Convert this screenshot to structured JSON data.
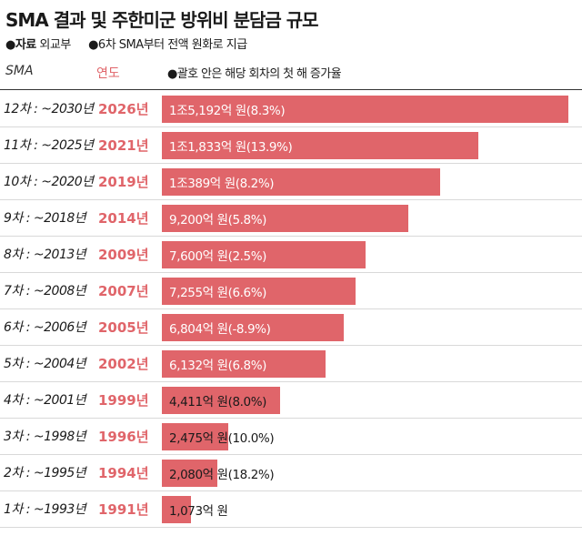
{
  "title": "SMA 결과 및 주한미군 방위비 분담금 규모",
  "source_label": "●자료",
  "source": "외교부",
  "note": "●6차 SMA부터 전액 원화로 지급",
  "header": {
    "sma": "SMA",
    "year": "연도",
    "note": "●괄호 안은 해당 회차의 첫 해 증가율"
  },
  "colors": {
    "bar": "#e0656a",
    "year_text": "#e0656a"
  },
  "chart_data": {
    "type": "bar",
    "orientation": "horizontal",
    "unit": "억 원",
    "rows": [
      {
        "sma": "12차 : ~2030년",
        "year": "2026년",
        "value": 15192,
        "label": "1조5,192억 원(8.3%)"
      },
      {
        "sma": "11차 : ~2025년",
        "year": "2021년",
        "value": 11833,
        "label": "1조1,833억 원(13.9%)"
      },
      {
        "sma": "10차 : ~2020년",
        "year": "2019년",
        "value": 10389,
        "label": "1조389억 원(8.2%)"
      },
      {
        "sma": "9차 : ~2018년",
        "year": "2014년",
        "value": 9200,
        "label": "9,200억 원(5.8%)"
      },
      {
        "sma": "8차 : ~2013년",
        "year": "2009년",
        "value": 7600,
        "label": "7,600억 원(2.5%)"
      },
      {
        "sma": "7차 : ~2008년",
        "year": "2007년",
        "value": 7255,
        "label": "7,255억 원(6.6%)"
      },
      {
        "sma": "6차 : ~2006년",
        "year": "2005년",
        "value": 6804,
        "label": "6,804억 원(-8.9%)"
      },
      {
        "sma": "5차 : ~2004년",
        "year": "2002년",
        "value": 6132,
        "label": "6,132억 원(6.8%)"
      },
      {
        "sma": "4차 : ~2001년",
        "year": "1999년",
        "value": 4411,
        "label": "4,411억 원(8.0%)"
      },
      {
        "sma": "3차 : ~1998년",
        "year": "1996년",
        "value": 2475,
        "label": "2,475억 원(10.0%)"
      },
      {
        "sma": "2차 : ~1995년",
        "year": "1994년",
        "value": 2080,
        "label": "2,080억 원(18.2%)"
      },
      {
        "sma": "1차 : ~1993년",
        "year": "1991년",
        "value": 1073,
        "label": "1,073억 원"
      }
    ]
  }
}
